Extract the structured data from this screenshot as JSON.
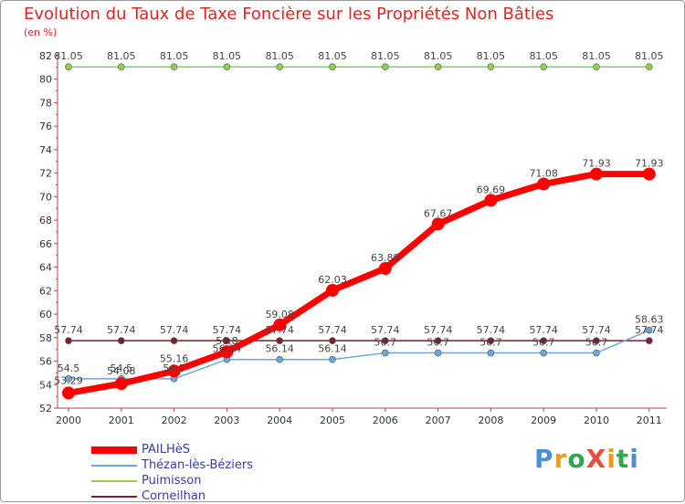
{
  "header": {
    "title": "Evolution du Taux de Taxe Foncière sur les Propriétés Non Bâties",
    "unit": "(en %)"
  },
  "logo": {
    "text": "ProXiti",
    "colors": [
      "#4a8fd6",
      "#f39c12",
      "#2fa84f",
      "#e74c3c",
      "#f39c12",
      "#2fa84f",
      "#4a8fd6"
    ]
  },
  "chart_data": {
    "type": "line",
    "title": "Evolution du Taux de Taxe Foncière sur les Propriétés Non Bâties",
    "ylabel": "(en %)",
    "x": [
      "2000",
      "2001",
      "2002",
      "2003",
      "2004",
      "2005",
      "2006",
      "2007",
      "2008",
      "2009",
      "2010",
      "2011"
    ],
    "ylim": [
      52,
      82
    ],
    "yticks": [
      "52",
      "54",
      "56",
      "58",
      "60",
      "62",
      "64",
      "66",
      "68",
      "70",
      "72",
      "74",
      "76",
      "78",
      "80",
      "82"
    ],
    "grid": false,
    "legend_position": "bottom-left",
    "series": [
      {
        "name": "PAILHèS",
        "color": "#ff0000",
        "values": [
          53.29,
          54.08,
          55.16,
          56.8,
          59.08,
          62.03,
          63.89,
          67.67,
          69.69,
          71.08,
          71.93,
          71.93
        ],
        "labels": [
          "53.29",
          "54.08",
          "55.16",
          "56.8",
          "59.08",
          "62.03",
          "63.89",
          "67.67",
          "69.69",
          "71.08",
          "71.93",
          "71.93"
        ]
      },
      {
        "name": "Thézan-lès-Béziers",
        "color": "#6ea6d8",
        "values": [
          54.5,
          54.5,
          54.5,
          56.14,
          56.14,
          56.14,
          56.7,
          56.7,
          56.7,
          56.7,
          56.7,
          58.63
        ],
        "labels": [
          "54.5",
          "54.5",
          "54.5",
          "56.14",
          "56.14",
          "56.14",
          "56.7",
          "56.7",
          "56.7",
          "56.7",
          "56.7",
          "58.63"
        ]
      },
      {
        "name": "Puimisson",
        "color": "#8fd14f",
        "values": [
          81.05,
          81.05,
          81.05,
          81.05,
          81.05,
          81.05,
          81.05,
          81.05,
          81.05,
          81.05,
          81.05,
          81.05
        ],
        "labels": [
          "81.05",
          "81.05",
          "81.05",
          "81.05",
          "81.05",
          "81.05",
          "81.05",
          "81.05",
          "81.05",
          "81.05",
          "81.05",
          "81.05"
        ]
      },
      {
        "name": "Corneilhan",
        "color": "#7a1f2b",
        "values": [
          57.74,
          57.74,
          57.74,
          57.74,
          57.74,
          57.74,
          57.74,
          57.74,
          57.74,
          57.74,
          57.74,
          57.74
        ],
        "labels": [
          "57.74",
          "57.74",
          "57.74",
          "57.74",
          "57.74",
          "57.74",
          "57.74",
          "57.74",
          "57.74",
          "57.74",
          "57.74",
          "57.74"
        ]
      }
    ]
  }
}
